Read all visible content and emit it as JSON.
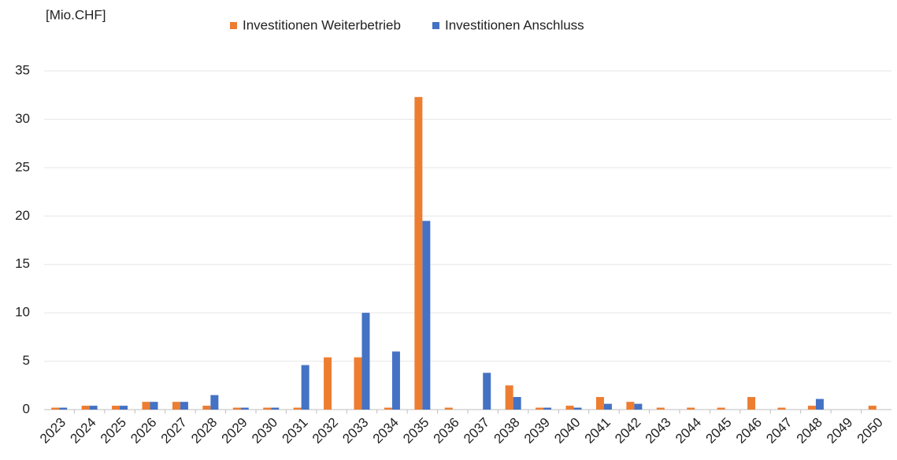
{
  "chart_data": {
    "type": "bar",
    "y_axis_label": "[Mio.CHF]",
    "categories": [
      "2023",
      "2024",
      "2025",
      "2026",
      "2027",
      "2028",
      "2029",
      "2030",
      "2031",
      "2032",
      "2033",
      "2034",
      "2035",
      "2036",
      "2037",
      "2038",
      "2039",
      "2040",
      "2041",
      "2042",
      "2043",
      "2044",
      "2045",
      "2046",
      "2047",
      "2048",
      "2049",
      "2050"
    ],
    "series": [
      {
        "name": "Investitionen Weiterbetrieb",
        "color": "#ed7d31",
        "values": [
          0.2,
          0.4,
          0.4,
          0.8,
          0.8,
          0.4,
          0.2,
          0.2,
          0.2,
          5.4,
          5.4,
          0.2,
          32.3,
          0.2,
          0,
          2.5,
          0.2,
          0.4,
          1.3,
          0.8,
          0.2,
          0.2,
          0.2,
          1.3,
          0.2,
          0.4,
          0,
          0.4
        ]
      },
      {
        "name": "Investitionen Anschluss",
        "color": "#4472c4",
        "values": [
          0.2,
          0.4,
          0.4,
          0.8,
          0.8,
          1.5,
          0.2,
          0.2,
          4.6,
          0,
          10,
          6,
          19.5,
          0,
          3.8,
          1.3,
          0.2,
          0.2,
          0.6,
          0.6,
          0,
          0,
          0,
          0,
          0,
          1.1,
          0,
          0
        ]
      }
    ],
    "ylim": [
      0,
      35
    ],
    "yticks": [
      0,
      5,
      10,
      15,
      20,
      25,
      30,
      35
    ],
    "grid": true,
    "legend": "top"
  }
}
